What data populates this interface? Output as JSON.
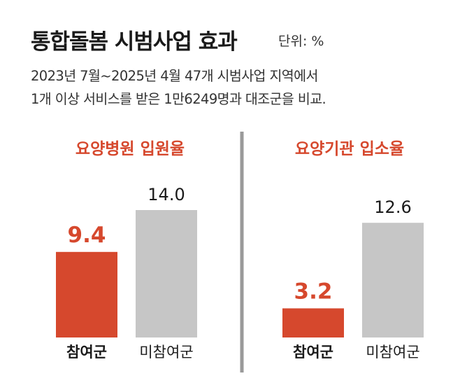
{
  "header": {
    "title": "통합돌봄 시범사업 효과",
    "unit": "단위: %",
    "subtitle_line1": "2023년 7월~2025년 4월 47개 시범사업 지역에서",
    "subtitle_line2": "1개 이상 서비스를 받은 1만6249명과 대조군을 비교."
  },
  "colors": {
    "accent": "#d6482d",
    "bar_gray": "#c6c6c6",
    "divider": "#9a9a9a",
    "text": "#1a1a1a"
  },
  "chart_data": [
    {
      "type": "bar",
      "title": "요양병원 입원율",
      "categories": [
        "참여군",
        "미참여군"
      ],
      "values": [
        9.4,
        14.0
      ],
      "value_labels": [
        "9.4",
        "14.0"
      ],
      "ylim": [
        0,
        15
      ],
      "xlabel": "",
      "ylabel": ""
    },
    {
      "type": "bar",
      "title": "요양기관 입소율",
      "categories": [
        "참여군",
        "미참여군"
      ],
      "values": [
        3.2,
        12.6
      ],
      "value_labels": [
        "3.2",
        "12.6"
      ],
      "ylim": [
        0,
        15
      ],
      "xlabel": "",
      "ylabel": ""
    }
  ]
}
